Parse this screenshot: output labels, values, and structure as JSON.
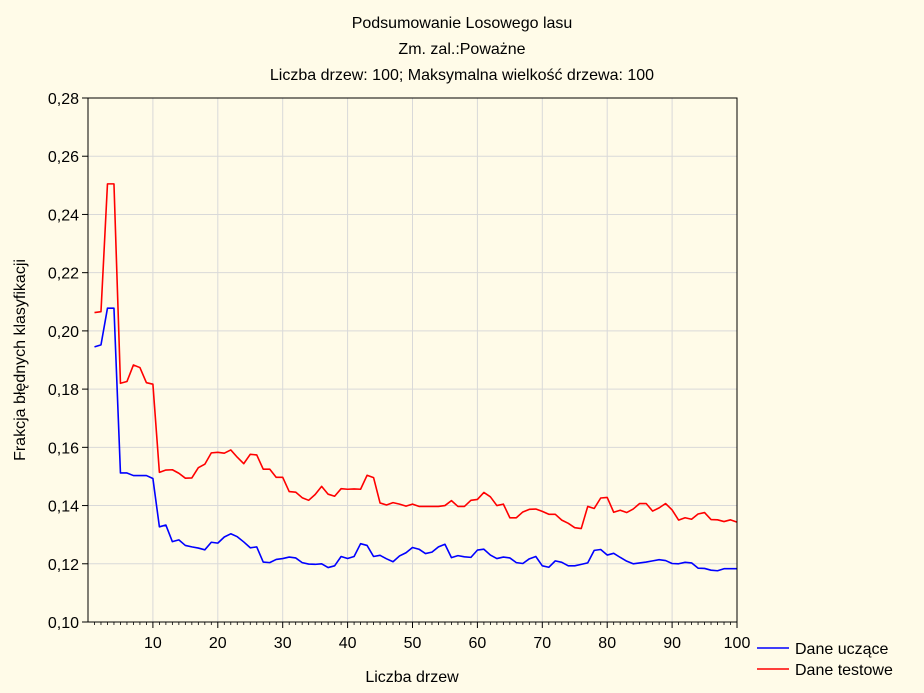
{
  "chart_data": {
    "type": "line",
    "title_lines": [
      "Podsumowanie Losowego lasu",
      "Zm. zal.:Poważne",
      "Liczba drzew: 100; Maksymalna wielkość drzewa: 100"
    ],
    "xlabel": "Liczba drzew",
    "ylabel": "Frakcja błędnych klasyfikacji",
    "xlim": [
      0,
      100
    ],
    "ylim": [
      0.1,
      0.28
    ],
    "x_ticks": [
      10,
      20,
      30,
      40,
      50,
      60,
      70,
      80,
      90,
      100
    ],
    "x_tick_labels": [
      "10",
      "20",
      "30",
      "40",
      "50",
      "60",
      "70",
      "80",
      "90",
      "100"
    ],
    "y_ticks": [
      0.1,
      0.12,
      0.14,
      0.16,
      0.18,
      0.2,
      0.22,
      0.24,
      0.26,
      0.28
    ],
    "y_tick_labels": [
      "0,10",
      "0,12",
      "0,14",
      "0,16",
      "0,18",
      "0,20",
      "0,22",
      "0,24",
      "0,26",
      "0,28"
    ],
    "grid": true,
    "legend_position": "bottom-right",
    "series": [
      {
        "name": "Dane uczące",
        "color": "#0000ff",
        "values": [
          0.1945,
          0.1952,
          0.2078,
          0.2078,
          0.1512,
          0.1512,
          0.1503,
          0.1503,
          0.1503,
          0.1493,
          0.1327,
          0.1333,
          0.1276,
          0.1282,
          0.1263,
          0.1258,
          0.1254,
          0.1248,
          0.1274,
          0.1271,
          0.1292,
          0.1303,
          0.1293,
          0.1275,
          0.1255,
          0.1258,
          0.1206,
          0.1204,
          0.1215,
          0.1218,
          0.1223,
          0.122,
          0.1204,
          0.1199,
          0.1198,
          0.12,
          0.1187,
          0.1193,
          0.1225,
          0.1218,
          0.1225,
          0.1269,
          0.1263,
          0.1225,
          0.1229,
          0.1217,
          0.1207,
          0.1227,
          0.1238,
          0.1256,
          0.125,
          0.1235,
          0.124,
          0.1258,
          0.1267,
          0.1221,
          0.1228,
          0.1224,
          0.1222,
          0.1247,
          0.125,
          0.123,
          0.1218,
          0.1223,
          0.122,
          0.1204,
          0.1201,
          0.1217,
          0.1225,
          0.1193,
          0.1188,
          0.121,
          0.1205,
          0.1193,
          0.1193,
          0.1198,
          0.1203,
          0.1246,
          0.1249,
          0.123,
          0.1236,
          0.1222,
          0.1209,
          0.12,
          0.1203,
          0.1206,
          0.121,
          0.1214,
          0.1211,
          0.1201,
          0.12,
          0.1205,
          0.1203,
          0.1185,
          0.1184,
          0.1178,
          0.1176,
          0.1183,
          0.1183,
          0.1183
        ]
      },
      {
        "name": "Dane testowe",
        "color": "#ff0000",
        "values": [
          0.2063,
          0.2066,
          0.2505,
          0.2505,
          0.182,
          0.1826,
          0.1883,
          0.1874,
          0.1822,
          0.1817,
          0.1514,
          0.1522,
          0.1523,
          0.1511,
          0.1494,
          0.1495,
          0.153,
          0.1542,
          0.1581,
          0.1583,
          0.158,
          0.1591,
          0.1566,
          0.1544,
          0.1576,
          0.1574,
          0.1525,
          0.1525,
          0.1497,
          0.1497,
          0.1448,
          0.1446,
          0.1427,
          0.1418,
          0.1438,
          0.1466,
          0.1439,
          0.1432,
          0.1458,
          0.1456,
          0.1457,
          0.1456,
          0.1504,
          0.1496,
          0.1409,
          0.1402,
          0.141,
          0.1405,
          0.1398,
          0.1405,
          0.1397,
          0.1397,
          0.1397,
          0.1397,
          0.14,
          0.1417,
          0.1397,
          0.1397,
          0.1418,
          0.1421,
          0.1445,
          0.143,
          0.14,
          0.1405,
          0.1358,
          0.1358,
          0.1378,
          0.1387,
          0.1388,
          0.138,
          0.137,
          0.137,
          0.135,
          0.1339,
          0.1324,
          0.1321,
          0.1397,
          0.139,
          0.1426,
          0.1428,
          0.1377,
          0.1384,
          0.1376,
          0.1388,
          0.1407,
          0.1407,
          0.1381,
          0.1392,
          0.1407,
          0.1385,
          0.135,
          0.1358,
          0.1353,
          0.1371,
          0.1376,
          0.1352,
          0.1351,
          0.1345,
          0.1351,
          0.1343
        ]
      }
    ]
  }
}
